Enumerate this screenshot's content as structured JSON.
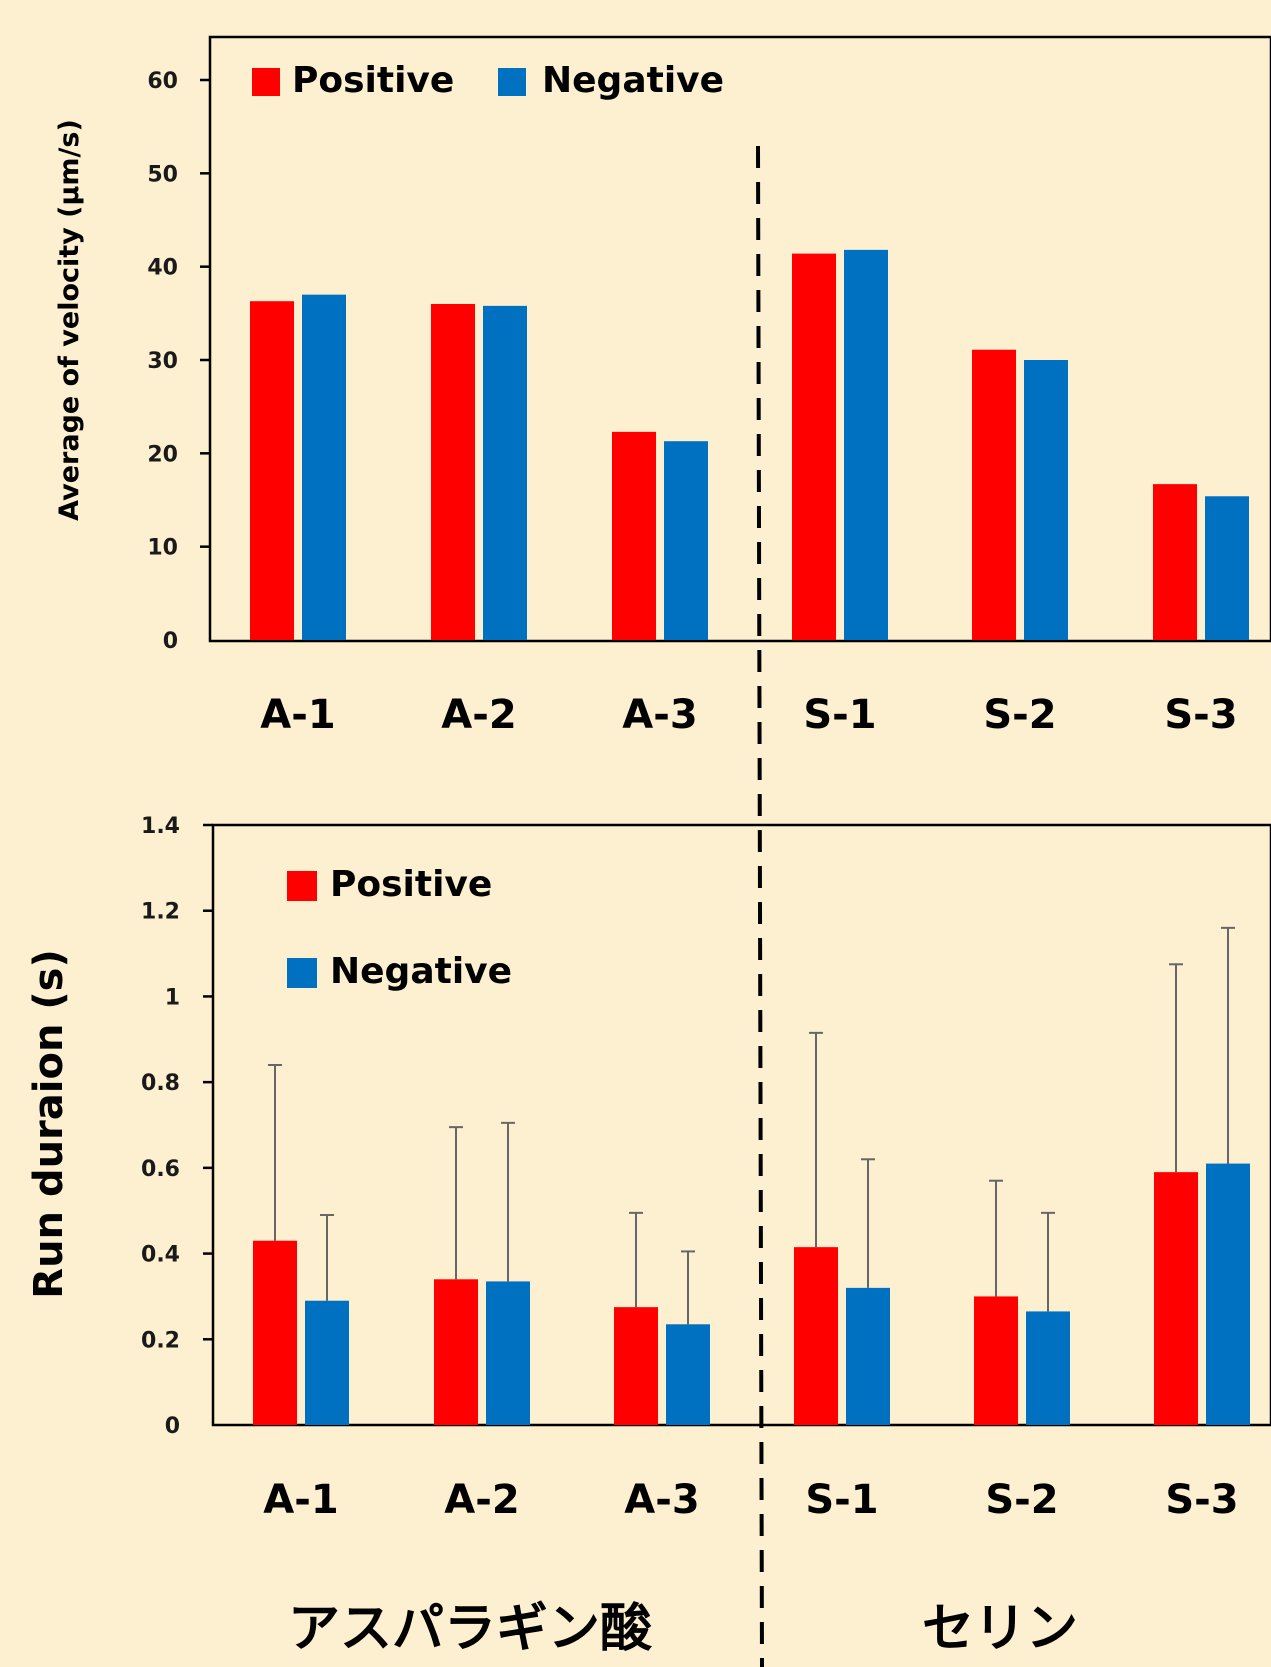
{
  "colors": {
    "positive": "#FF0000",
    "negative": "#0070C0",
    "background": "#FDF0D0"
  },
  "chart_data": [
    {
      "type": "bar",
      "categories": [
        "A-1",
        "A-2",
        "A-3",
        "S-1",
        "S-2",
        "S-3"
      ],
      "series": [
        {
          "name": "Positive",
          "values": [
            36.3,
            36.0,
            22.3,
            41.4,
            31.1,
            16.7
          ]
        },
        {
          "name": "Negative",
          "values": [
            37.0,
            35.8,
            21.3,
            41.8,
            30.0,
            15.4
          ]
        }
      ],
      "ylabel": "Average of velocity (μm/s)",
      "ylim": [
        0,
        60
      ],
      "yticks": [
        "0",
        "10",
        "20",
        "30",
        "40",
        "50",
        "60"
      ],
      "legend": "top-left",
      "grid": false
    },
    {
      "type": "bar",
      "categories": [
        "A-1",
        "A-2",
        "A-3",
        "S-1",
        "S-2",
        "S-3"
      ],
      "series": [
        {
          "name": "Positive",
          "values": [
            0.43,
            0.34,
            0.275,
            0.415,
            0.3,
            0.59
          ],
          "error": [
            0.41,
            0.355,
            0.22,
            0.5,
            0.27,
            0.485
          ]
        },
        {
          "name": "Negative",
          "values": [
            0.29,
            0.335,
            0.235,
            0.32,
            0.265,
            0.61
          ],
          "error": [
            0.2,
            0.37,
            0.17,
            0.3,
            0.23,
            0.55
          ]
        }
      ],
      "ylabel": "Run duraion (s)",
      "ylim": [
        0,
        1.4
      ],
      "yticks": [
        "0",
        "0.2",
        "0.4",
        "0.6",
        "0.8",
        "1",
        "1.2",
        "1.4"
      ],
      "legend": "top-left",
      "grid": false
    }
  ],
  "groups": {
    "left": "アスパラギン酸",
    "right": "セリン"
  }
}
